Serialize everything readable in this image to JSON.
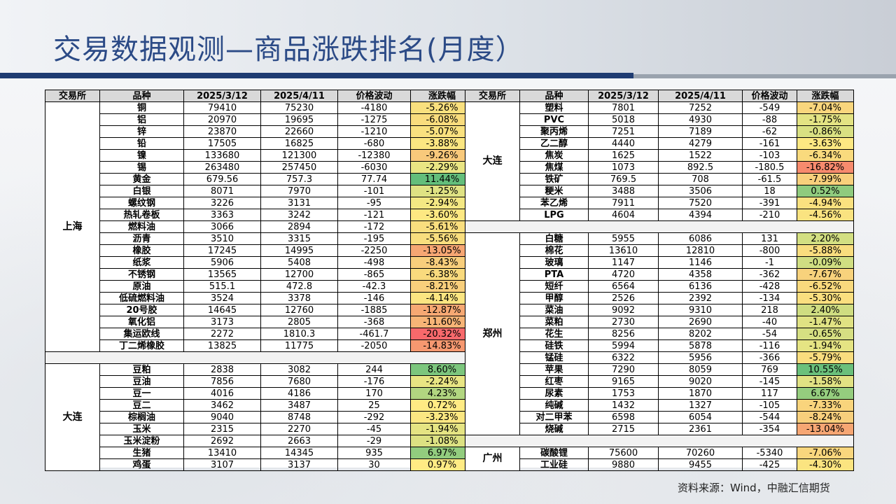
{
  "title": "交易数据观测—商品涨跌排名(月度）",
  "source": "资料来源：Wind，中融汇信期货",
  "headers": [
    "交易所",
    "品种",
    "2025/3/12",
    "2025/4/11",
    "价格波动",
    "涨跌幅"
  ],
  "left_groups": [
    {
      "exchange": "上海",
      "rows": [
        [
          "铜",
          "79410",
          "75230",
          "-4180",
          "-5.26%",
          "#f9e07e"
        ],
        [
          "铝",
          "20970",
          "19695",
          "-1275",
          "-6.08%",
          "#f9dc7d"
        ],
        [
          "锌",
          "23870",
          "22660",
          "-1210",
          "-5.07%",
          "#f9e17f"
        ],
        [
          "铅",
          "17505",
          "16825",
          "-680",
          "-3.88%",
          "#fbe681"
        ],
        [
          "镍",
          "133680",
          "121300",
          "-12380",
          "-9.26%",
          "#f8c97b"
        ],
        [
          "锡",
          "263480",
          "257450",
          "-6030",
          "-2.29%",
          "#e9e583"
        ],
        [
          "黄金",
          "679.56",
          "757.3",
          "77.74",
          "11.44%",
          "#63be7b"
        ],
        [
          "白银",
          "8071",
          "7970",
          "-101",
          "-1.25%",
          "#dfe283"
        ],
        [
          "螺纹钢",
          "3226",
          "3131",
          "-95",
          "-2.94%",
          "#f4e883"
        ],
        [
          "热轧卷板",
          "3363",
          "3242",
          "-121",
          "-3.60%",
          "#fde882"
        ],
        [
          "燃料油",
          "3066",
          "2894",
          "-172",
          "-5.61%",
          "#f9de7e"
        ],
        [
          "沥青",
          "3510",
          "3315",
          "-195",
          "-5.56%",
          "#f9de7e"
        ],
        [
          "橡胶",
          "17245",
          "14995",
          "-2250",
          "-13.05%",
          "#f6a673"
        ],
        [
          "纸浆",
          "5906",
          "5408",
          "-498",
          "-8.43%",
          "#f8ce7c"
        ],
        [
          "不锈钢",
          "13565",
          "12700",
          "-865",
          "-6.38%",
          "#f9da7d"
        ],
        [
          "原油",
          "515.1",
          "472.8",
          "-42.3",
          "-8.21%",
          "#f8cf7c"
        ],
        [
          "低硫燃料油",
          "3524",
          "3378",
          "-146",
          "-4.14%",
          "#fbe581"
        ],
        [
          "20号胶",
          "14645",
          "12760",
          "-1885",
          "-12.87%",
          "#f6a873"
        ],
        [
          "氧化铝",
          "3173",
          "2805",
          "-368",
          "-11.60%",
          "#f7b476"
        ],
        [
          "集运欧线",
          "2272",
          "1810.3",
          "-461.7",
          "-20.32%",
          "#f8696b"
        ],
        [
          "丁二烯橡胶",
          "13825",
          "11775",
          "-2050",
          "-14.83%",
          "#f69870"
        ]
      ]
    },
    {
      "exchange": "大连",
      "rows": [
        [
          "豆粕",
          "2838",
          "3082",
          "244",
          "8.60%",
          "#7cc67d"
        ],
        [
          "豆油",
          "7856",
          "7680",
          "-176",
          "-2.24%",
          "#e8e583"
        ],
        [
          "豆一",
          "4016",
          "4186",
          "170",
          "4.23%",
          "#b2d680"
        ],
        [
          "豆二",
          "3462",
          "3487",
          "25",
          "0.72%",
          "#ffeb84"
        ],
        [
          "棕榈油",
          "9040",
          "8748",
          "-292",
          "-3.23%",
          "#fbe782"
        ],
        [
          "玉米",
          "2315",
          "2270",
          "-45",
          "-1.94%",
          "#e5e483"
        ],
        [
          "玉米淀粉",
          "2692",
          "2663",
          "-29",
          "-1.08%",
          "#dce182"
        ],
        [
          "生猪",
          "13410",
          "14345",
          "935",
          "6.97%",
          "#92cc7e"
        ],
        [
          "鸡蛋",
          "3107",
          "3137",
          "30",
          "0.97%",
          "#ffeb84"
        ]
      ]
    }
  ],
  "right_groups": [
    {
      "exchange": "大连",
      "rows": [
        [
          "塑料",
          "7801",
          "7252",
          "-549",
          "-7.04%",
          "#f9d67d"
        ],
        [
          "PVC",
          "5018",
          "4930",
          "-88",
          "-1.75%",
          "#e3e383"
        ],
        [
          "聚丙烯",
          "7251",
          "7189",
          "-62",
          "-0.86%",
          "#d9e082"
        ],
        [
          "乙二醇",
          "4440",
          "4279",
          "-161",
          "-3.63%",
          "#fde882"
        ],
        [
          "焦炭",
          "1625",
          "1522",
          "-103",
          "-6.34%",
          "#f9da7d"
        ],
        [
          "焦煤",
          "1073",
          "892.5",
          "-180.5",
          "-16.82%",
          "#f78a6d"
        ],
        [
          "铁矿",
          "769.5",
          "708",
          "-61.5",
          "-7.99%",
          "#f8d07c"
        ],
        [
          "粳米",
          "3488",
          "3506",
          "18",
          "0.52%",
          "#8fcb7e"
        ],
        [
          "苯乙烯",
          "7911",
          "7520",
          "-391",
          "-4.94%",
          "#fae17f"
        ],
        [
          "LPG",
          "4604",
          "4394",
          "-210",
          "-4.56%",
          "#fae380"
        ]
      ]
    },
    {
      "exchange": "郑州",
      "rows": [
        [
          "白糖",
          "5955",
          "6086",
          "131",
          "2.20%",
          "#d3df82"
        ],
        [
          "棉花",
          "13610",
          "12810",
          "-800",
          "-5.88%",
          "#f9dd7e"
        ],
        [
          "玻璃",
          "1147",
          "1146",
          "-1",
          "-0.09%",
          "#d0de82"
        ],
        [
          "PTA",
          "4720",
          "4358",
          "-362",
          "-7.67%",
          "#f8d27c"
        ],
        [
          "短纤",
          "6564",
          "6136",
          "-428",
          "-6.52%",
          "#f9d97d"
        ],
        [
          "甲醇",
          "2526",
          "2392",
          "-134",
          "-5.30%",
          "#fadf7f"
        ],
        [
          "菜油",
          "9092",
          "9310",
          "218",
          "2.40%",
          "#cfdd81"
        ],
        [
          "菜粕",
          "2730",
          "2690",
          "-40",
          "-1.47%",
          "#e0e283"
        ],
        [
          "花生",
          "8256",
          "8202",
          "-54",
          "-0.65%",
          "#d6df82"
        ],
        [
          "硅铁",
          "5994",
          "5878",
          "-116",
          "-1.94%",
          "#e5e483"
        ],
        [
          "锰硅",
          "6322",
          "5956",
          "-366",
          "-5.79%",
          "#f9dd7e"
        ],
        [
          "苹果",
          "7290",
          "8059",
          "769",
          "10.55%",
          "#6ac07b"
        ],
        [
          "红枣",
          "9165",
          "9020",
          "-145",
          "-1.58%",
          "#e1e283"
        ],
        [
          "尿素",
          "1753",
          "1870",
          "117",
          "6.67%",
          "#95cd7e"
        ],
        [
          "纯碱",
          "1432",
          "1327",
          "-105",
          "-7.33%",
          "#f9d47c"
        ],
        [
          "对二甲苯",
          "6598",
          "6054",
          "-544",
          "-8.24%",
          "#f8cf7c"
        ],
        [
          "烧碱",
          "2715",
          "2361",
          "-354",
          "-13.04%",
          "#f6a673"
        ]
      ]
    },
    {
      "exchange": "广州",
      "rows": [
        [
          "碳酸锂",
          "75600",
          "70260",
          "-5340",
          "-7.06%",
          "#f9d67d"
        ],
        [
          "工业硅",
          "9880",
          "9455",
          "-425",
          "-4.30%",
          "#fbe480"
        ]
      ]
    }
  ]
}
